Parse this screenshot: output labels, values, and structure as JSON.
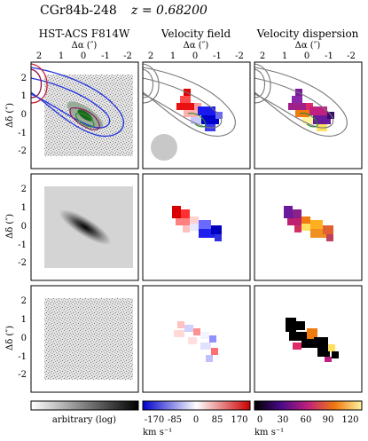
{
  "figure": {
    "object_name": "CGr84b-248",
    "redshift_label": "z = 0.68200",
    "columns": [
      {
        "title": "HST-ACS F814W"
      },
      {
        "title": "Velocity field"
      },
      {
        "title": "Velocity dispersion"
      }
    ],
    "x_axis_label": "Δα (″)",
    "y_axis_label": "Δδ (″)",
    "x_ticks": [
      "2",
      "1",
      "0",
      "-1",
      "-2"
    ],
    "y_ticks": [
      "2",
      "1",
      "0",
      "-1",
      "-2"
    ],
    "colorbars": [
      {
        "name": "hst",
        "label": "arbitrary (log)",
        "ticks": [],
        "unit": ""
      },
      {
        "name": "velocity",
        "label": "",
        "ticks": [
          "-170",
          "-85",
          "0",
          "85",
          "170"
        ],
        "unit": "km s⁻¹"
      },
      {
        "name": "dispersion",
        "label": "",
        "ticks": [
          "0",
          "30",
          "60",
          "90",
          "120"
        ],
        "unit": "km s⁻¹"
      }
    ]
  },
  "colors": {
    "contour_blue": "#2233dd",
    "contour_red": "#cc2233",
    "contour_gray": "#777777",
    "psf_circle": "#c8c8c8"
  }
}
